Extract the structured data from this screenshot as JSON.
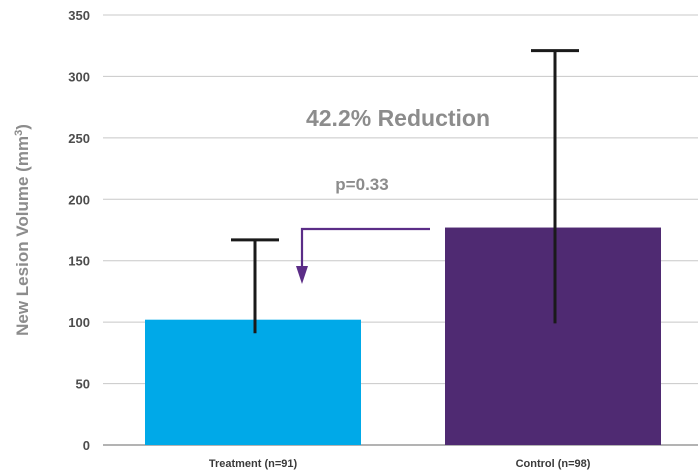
{
  "chart_data": {
    "type": "bar",
    "categories": [
      "Treatment (n=91)",
      "Control (n=98)"
    ],
    "values": [
      102,
      177
    ],
    "error_low": [
      91,
      99
    ],
    "error_high": [
      167,
      321
    ],
    "ylabel_main": "New Lesion Volume (mm",
    "ylabel_sup": "3",
    "ylabel_close": ")",
    "ylim": [
      0,
      350
    ],
    "yticks": [
      "0",
      "50",
      "100",
      "150",
      "200",
      "250",
      "300",
      "350"
    ],
    "grid": true,
    "colors": [
      "#00a9e8",
      "#4f2a72"
    ],
    "arrow_color": "#5b2d87",
    "annotations": {
      "reduction": "42.2% Reduction",
      "pvalue": "p=0.33"
    }
  }
}
